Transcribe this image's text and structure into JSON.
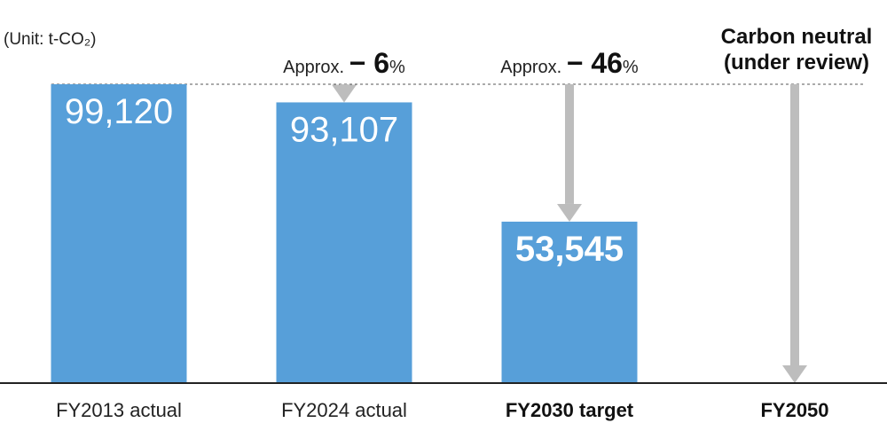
{
  "chart_data": {
    "type": "bar",
    "unit_label": "(Unit: t-CO₂)",
    "categories": [
      "FY2013 actual",
      "FY2024 actual",
      "FY2030 target",
      "FY2050"
    ],
    "category_bold": [
      false,
      false,
      true,
      true
    ],
    "values": [
      99120,
      93107,
      53545,
      null
    ],
    "value_labels": [
      "99,120",
      "93,107",
      "53,545",
      ""
    ],
    "value_label_bold": [
      false,
      false,
      true,
      false
    ],
    "ylim": [
      0,
      99120
    ],
    "grid": false,
    "bar_color": "#579fd9",
    "arrow_color": "#bdbdbd",
    "annotations": [
      {
        "category_index": 1,
        "prefix": "Approx.",
        "number": "− 6",
        "suffix": "%"
      },
      {
        "category_index": 2,
        "prefix": "Approx.",
        "number": "− 46",
        "suffix": "%"
      }
    ],
    "target_label": {
      "category_index": 3,
      "line1": "Carbon neutral",
      "line2": "(under review)"
    }
  }
}
